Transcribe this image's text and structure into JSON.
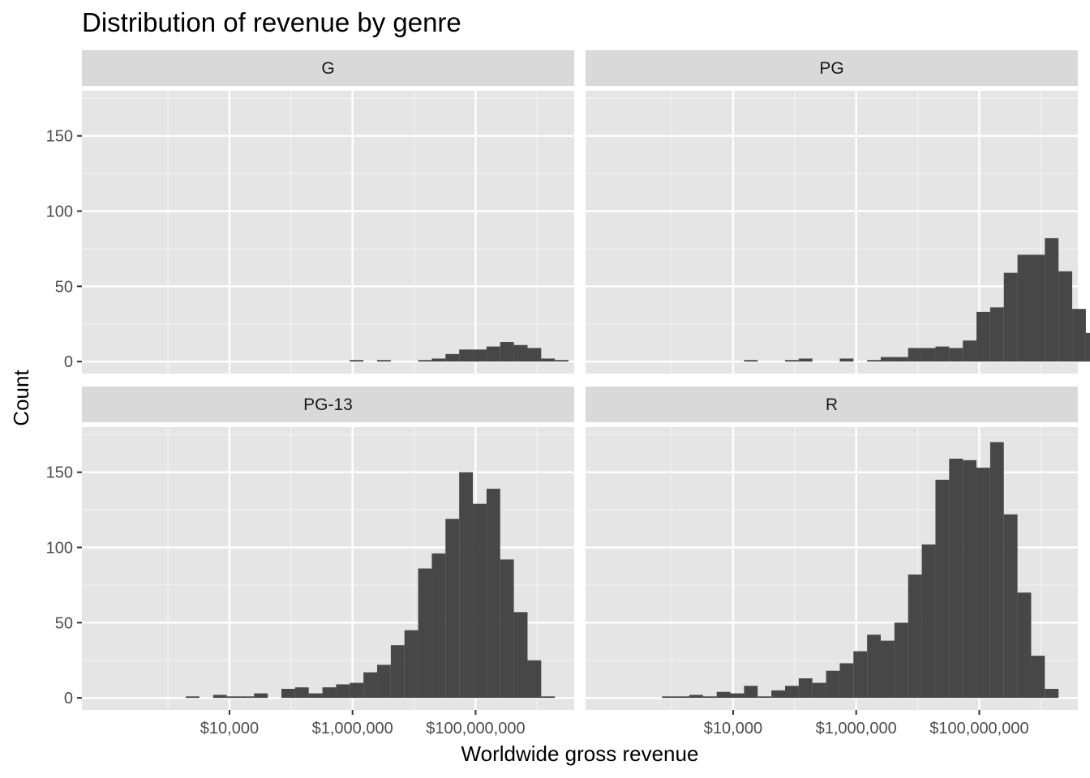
{
  "chart_data": {
    "type": "histogram",
    "title": "Distribution of revenue by genre",
    "xlabel": "Worldwide gross revenue",
    "ylabel": "Count",
    "x_scale": "log10",
    "x_limits": [
      40,
      4000000000
    ],
    "y_limits": [
      -8,
      180
    ],
    "x_ticks": [
      10000,
      1000000,
      100000000
    ],
    "x_tick_labels": [
      "$10,000",
      "$1,000,000",
      "$100,000,000"
    ],
    "y_ticks": [
      0,
      50,
      100,
      150
    ],
    "y_tick_labels": [
      "0",
      "50",
      "100",
      "150"
    ],
    "bin_width_log10": 0.2222,
    "bin_start_log10": 2.4,
    "bar_color": "#474747",
    "panel_background": "#e5e5e5",
    "strip_background": "#d9d9d9",
    "grid": true,
    "panels": [
      {
        "label": "G",
        "counts": [
          0,
          0,
          0,
          0,
          0,
          0,
          0,
          0,
          0,
          0,
          0,
          0,
          0,
          0,
          0,
          0,
          1,
          0,
          1,
          0,
          0,
          1,
          2,
          5,
          8,
          8,
          10,
          13,
          11,
          9,
          2,
          1
        ]
      },
      {
        "label": "PG",
        "counts": [
          0,
          0,
          0,
          0,
          0,
          0,
          0,
          0,
          1,
          0,
          0,
          1,
          2,
          0,
          0,
          2,
          0,
          1,
          3,
          3,
          9,
          9,
          10,
          9,
          14,
          33,
          36,
          59,
          71,
          71,
          82,
          60,
          35,
          19,
          4
        ]
      },
      {
        "label": "PG-13",
        "counts": [
          0,
          0,
          0,
          0,
          1,
          0,
          2,
          1,
          1,
          3,
          0,
          6,
          7,
          3,
          7,
          9,
          10,
          17,
          22,
          35,
          45,
          86,
          96,
          119,
          150,
          129,
          139,
          92,
          57,
          25,
          1
        ]
      },
      {
        "label": "R",
        "counts": [
          0,
          0,
          1,
          1,
          2,
          1,
          4,
          3,
          8,
          1,
          5,
          8,
          13,
          10,
          18,
          23,
          31,
          42,
          38,
          50,
          82,
          102,
          145,
          159,
          158,
          153,
          170,
          122,
          70,
          28,
          6
        ]
      }
    ]
  }
}
